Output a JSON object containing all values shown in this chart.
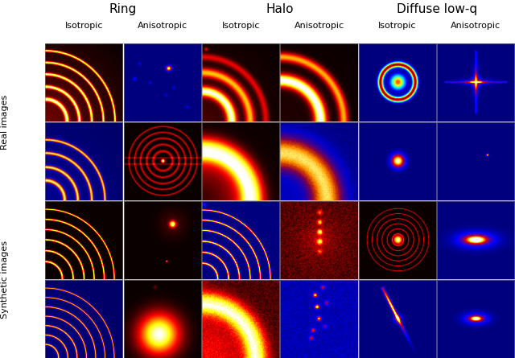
{
  "col_labels": [
    "Isotropic",
    "Anisotropic",
    "Isotropic",
    "Anisotropic",
    "Isotropic",
    "Anisotropic"
  ],
  "cat_titles": [
    [
      "Ring",
      0.5,
      1
    ],
    [
      "Halo",
      2.5,
      3
    ],
    [
      "Diffuse low-q",
      4.5,
      5
    ]
  ],
  "row_labels_group1": "Real images",
  "row_labels_group2": "Synthetic images",
  "n_rows": 4,
  "n_cols": 6,
  "figsize": [
    6.4,
    4.45
  ],
  "dpi": 100
}
